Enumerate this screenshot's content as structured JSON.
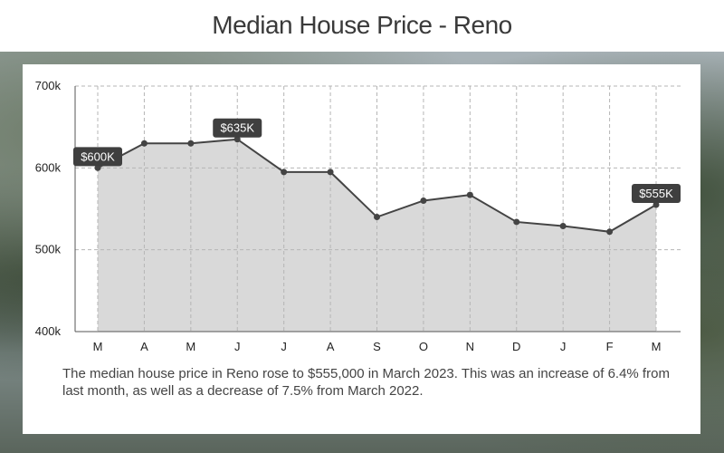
{
  "title": "Median House Price - Reno",
  "caption": "The median house price in Reno rose to $555,000 in March 2023.  This was an increase of 6.4% from last month, as well as a decrease of 7.5% from March 2022.",
  "chart_data": {
    "type": "area",
    "title": "Median House Price - Reno",
    "categories": [
      "M",
      "A",
      "M",
      "J",
      "J",
      "A",
      "S",
      "O",
      "N",
      "D",
      "J",
      "F",
      "M"
    ],
    "series": [
      {
        "values": [
          600000,
          630000,
          630000,
          635000,
          595000,
          595000,
          540000,
          560000,
          567000,
          534000,
          529000,
          522000,
          555000
        ]
      }
    ],
    "ylim": [
      400000,
      700000
    ],
    "yticks": [
      400000,
      500000,
      600000,
      700000
    ],
    "ytick_labels": [
      "400k",
      "500k",
      "600k",
      "700k"
    ],
    "annotations": [
      {
        "index": 0,
        "text": "$600K"
      },
      {
        "index": 3,
        "text": "$635K"
      },
      {
        "index": 12,
        "text": "$555K"
      }
    ],
    "grid": true,
    "colors": {
      "line": "#444444",
      "fill": "#d9d9d9",
      "point": "#444444",
      "label_bg": "#3f3f3f"
    }
  }
}
